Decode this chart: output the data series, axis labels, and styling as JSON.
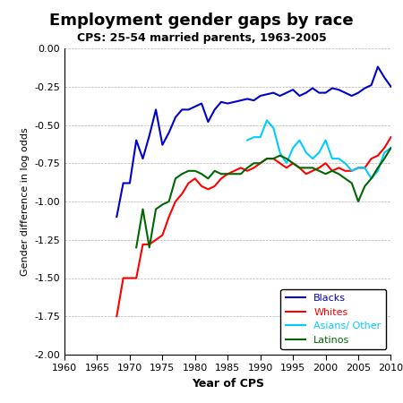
{
  "title": "Employment gender gaps by race",
  "subtitle": "CPS: 25-54 married parents, 1963-2005",
  "xlabel": "Year of CPS",
  "ylabel": "Gender difference in log odds",
  "xlim": [
    1960,
    2010
  ],
  "ylim": [
    -2.0,
    0.0
  ],
  "yticks": [
    0.0,
    -0.25,
    -0.5,
    -0.75,
    -1.0,
    -1.25,
    -1.5,
    -1.75,
    -2.0
  ],
  "xticks": [
    1960,
    1965,
    1970,
    1975,
    1980,
    1985,
    1990,
    1995,
    2000,
    2005,
    2010
  ],
  "colors": {
    "Blacks": "#0000CC",
    "Whites": "#FF0000",
    "Asians": "#00CCFF",
    "Latinos": "#006600"
  },
  "blacks": {
    "x": [
      1968,
      1969,
      1970,
      1971,
      1972,
      1973,
      1974,
      1975,
      1976,
      1977,
      1978,
      1979,
      1980,
      1981,
      1982,
      1983,
      1984,
      1985,
      1986,
      1987,
      1988,
      1989,
      1990,
      1991,
      1992,
      1993,
      1994,
      1995,
      1996,
      1997,
      1998,
      1999,
      2000,
      2001,
      2002,
      2003,
      2004,
      2005,
      2006,
      2007,
      2008,
      2009,
      2010
    ],
    "y": [
      -1.1,
      -0.88,
      -0.88,
      -0.6,
      -0.72,
      -0.57,
      -0.4,
      -0.63,
      -0.55,
      -0.45,
      -0.4,
      -0.4,
      -0.38,
      -0.36,
      -0.48,
      -0.4,
      -0.35,
      -0.36,
      -0.35,
      -0.34,
      -0.33,
      -0.34,
      -0.31,
      -0.3,
      -0.29,
      -0.31,
      -0.29,
      -0.27,
      -0.31,
      -0.29,
      -0.26,
      -0.29,
      -0.29,
      -0.26,
      -0.27,
      -0.29,
      -0.31,
      -0.29,
      -0.26,
      -0.24,
      -0.12,
      -0.19,
      -0.25
    ]
  },
  "whites": {
    "x": [
      1968,
      1969,
      1970,
      1971,
      1972,
      1973,
      1974,
      1975,
      1976,
      1977,
      1978,
      1979,
      1980,
      1981,
      1982,
      1983,
      1984,
      1985,
      1986,
      1987,
      1988,
      1989,
      1990,
      1991,
      1992,
      1993,
      1994,
      1995,
      1996,
      1997,
      1998,
      1999,
      2000,
      2001,
      2002,
      2003,
      2004,
      2005,
      2006,
      2007,
      2008,
      2009,
      2010
    ],
    "y": [
      -1.75,
      -1.5,
      -1.5,
      -1.5,
      -1.28,
      -1.28,
      -1.25,
      -1.22,
      -1.1,
      -1.0,
      -0.95,
      -0.88,
      -0.85,
      -0.9,
      -0.92,
      -0.9,
      -0.85,
      -0.82,
      -0.8,
      -0.78,
      -0.8,
      -0.78,
      -0.75,
      -0.72,
      -0.72,
      -0.75,
      -0.78,
      -0.75,
      -0.78,
      -0.82,
      -0.8,
      -0.78,
      -0.75,
      -0.8,
      -0.78,
      -0.8,
      -0.8,
      -0.78,
      -0.78,
      -0.72,
      -0.7,
      -0.65,
      -0.58
    ]
  },
  "asians": {
    "x": [
      1988,
      1989,
      1990,
      1991,
      1992,
      1993,
      1994,
      1995,
      1996,
      1997,
      1998,
      1999,
      2000,
      2001,
      2002,
      2003,
      2004,
      2005,
      2006,
      2007,
      2008,
      2009,
      2010
    ],
    "y": [
      -0.6,
      -0.58,
      -0.58,
      -0.47,
      -0.52,
      -0.68,
      -0.75,
      -0.65,
      -0.6,
      -0.68,
      -0.72,
      -0.68,
      -0.6,
      -0.72,
      -0.72,
      -0.75,
      -0.8,
      -0.78,
      -0.78,
      -0.85,
      -0.8,
      -0.68,
      -0.65
    ]
  },
  "latinos": {
    "x": [
      1971,
      1972,
      1973,
      1974,
      1975,
      1976,
      1977,
      1978,
      1979,
      1980,
      1981,
      1982,
      1983,
      1984,
      1985,
      1986,
      1987,
      1988,
      1989,
      1990,
      1991,
      1992,
      1993,
      1994,
      1995,
      1996,
      1997,
      1998,
      1999,
      2000,
      2001,
      2002,
      2003,
      2004,
      2005,
      2006,
      2007,
      2008,
      2009,
      2010
    ],
    "y": [
      -1.3,
      -1.05,
      -1.3,
      -1.05,
      -1.02,
      -1.0,
      -0.85,
      -0.82,
      -0.8,
      -0.8,
      -0.82,
      -0.85,
      -0.8,
      -0.82,
      -0.82,
      -0.82,
      -0.82,
      -0.78,
      -0.75,
      -0.75,
      -0.72,
      -0.72,
      -0.7,
      -0.72,
      -0.75,
      -0.78,
      -0.78,
      -0.78,
      -0.8,
      -0.82,
      -0.8,
      -0.82,
      -0.85,
      -0.88,
      -1.0,
      -0.9,
      -0.85,
      -0.78,
      -0.72,
      -0.65
    ]
  },
  "legend": {
    "labels": [
      "Blacks",
      "Whites",
      "Asians/ Other",
      "Latinos"
    ],
    "colors": [
      "#0000CC",
      "#FF0000",
      "#00CCFF",
      "#006600"
    ]
  }
}
